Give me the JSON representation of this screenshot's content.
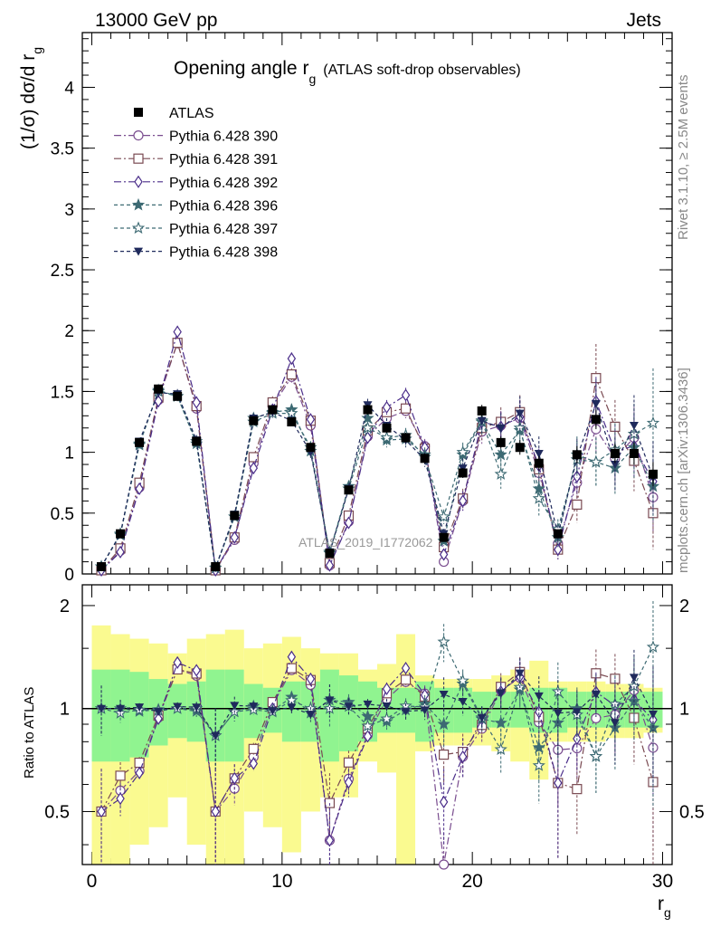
{
  "header": {
    "left": "13000 GeV pp",
    "right": "Jets"
  },
  "side_labels": {
    "rivet": "Rivet 3.1.10, ≥ 2.5M events",
    "mcplots": "mcplots.cern.ch [arXiv:1306.3436]"
  },
  "chart_data": {
    "type": "line",
    "title": "Opening angle r_g (ATLAS soft-drop observables)",
    "title_main": "Opening angle r",
    "title_sub": "g",
    "title_tail": "(ATLAS soft-drop observables)",
    "ylabel_main": "(1/σ) dσ/d r",
    "ylabel_sub": "g",
    "xlabel": "r",
    "xlabel_sub": "g",
    "watermark": "ATLAS_2019_I1772062",
    "ratio_ylabel": "Ratio to ATLAS",
    "xlim": [
      -0.5,
      30.5
    ],
    "ylim": [
      0,
      4.45
    ],
    "ratio_ylim": [
      0.35,
      2.3
    ],
    "x_ticks": [
      0,
      10,
      20,
      30
    ],
    "y_ticks": [
      0,
      0.5,
      1,
      1.5,
      2,
      2.5,
      3,
      3.5,
      4
    ],
    "ratio_y_ticks": [
      0.5,
      1,
      2
    ],
    "x": [
      0.5,
      1.5,
      2.5,
      3.5,
      4.5,
      5.5,
      6.5,
      7.5,
      8.5,
      9.5,
      10.5,
      11.5,
      12.5,
      13.5,
      14.5,
      15.5,
      16.5,
      17.5,
      18.5,
      19.5,
      20.5,
      21.5,
      22.5,
      23.5,
      24.5,
      25.5,
      26.5,
      27.5,
      28.5,
      29.5
    ],
    "data": {
      "name": "ATLAS",
      "values": [
        0.06,
        0.33,
        1.08,
        1.52,
        1.46,
        1.09,
        0.06,
        0.48,
        1.26,
        1.35,
        1.25,
        1.04,
        0.17,
        0.69,
        1.35,
        1.2,
        1.12,
        0.95,
        0.3,
        0.83,
        1.34,
        1.08,
        1.04,
        0.91,
        0.33,
        0.98,
        1.27,
        0.99,
        0.99,
        0.82
      ],
      "stat_err": [
        0.01,
        0.02,
        0.03,
        0.03,
        0.03,
        0.03,
        0.01,
        0.02,
        0.03,
        0.03,
        0.03,
        0.03,
        0.02,
        0.03,
        0.04,
        0.04,
        0.04,
        0.04,
        0.02,
        0.04,
        0.05,
        0.05,
        0.06,
        0.06,
        0.03,
        0.07,
        0.08,
        0.08,
        0.09,
        0.1
      ],
      "band_inner": [
        0.3,
        0.3,
        0.28,
        0.22,
        0.18,
        0.2,
        0.3,
        0.3,
        0.18,
        0.15,
        0.2,
        0.2,
        0.3,
        0.25,
        0.2,
        0.15,
        0.15,
        0.2,
        0.15,
        0.15,
        0.12,
        0.12,
        0.12,
        0.15,
        0.15,
        0.12,
        0.12,
        0.12,
        0.12,
        0.12
      ],
      "band_outer": [
        0.75,
        0.65,
        0.6,
        0.55,
        0.45,
        0.6,
        0.65,
        0.7,
        0.5,
        0.55,
        0.62,
        0.5,
        0.45,
        0.45,
        0.3,
        0.35,
        0.65,
        0.25,
        0.22,
        0.22,
        0.22,
        0.25,
        0.3,
        0.38,
        0.2,
        0.2,
        0.2,
        0.18,
        0.18,
        0.15
      ]
    },
    "series": [
      {
        "name": "Pythia 6.428 390",
        "color": "#7a4d8f",
        "marker": "circle-open",
        "dash": "8,3,2,3",
        "values": [
          0.03,
          0.19,
          0.71,
          1.43,
          1.9,
          1.36,
          0.03,
          0.28,
          0.91,
          1.38,
          1.62,
          1.22,
          0.07,
          0.43,
          1.13,
          1.28,
          1.34,
          1.05,
          0.1,
          0.6,
          1.17,
          1.22,
          1.28,
          0.83,
          0.25,
          0.75,
          1.19,
          0.95,
          1.12,
          0.63
        ],
        "errors": [
          0.01,
          0.02,
          0.03,
          0.04,
          0.05,
          0.05,
          0.01,
          0.03,
          0.04,
          0.05,
          0.05,
          0.05,
          0.02,
          0.04,
          0.05,
          0.06,
          0.06,
          0.06,
          0.03,
          0.08,
          0.1,
          0.12,
          0.14,
          0.14,
          0.08,
          0.15,
          0.2,
          0.22,
          0.25,
          0.3
        ]
      },
      {
        "name": "Pythia 6.428 391",
        "color": "#7a4a52",
        "marker": "square-open",
        "dash": "8,3,2,3",
        "values": [
          0.03,
          0.21,
          0.75,
          1.45,
          1.9,
          1.38,
          0.03,
          0.3,
          0.96,
          1.41,
          1.64,
          1.26,
          0.09,
          0.48,
          1.18,
          1.33,
          1.36,
          1.03,
          0.22,
          0.62,
          1.2,
          1.25,
          1.33,
          0.86,
          0.2,
          0.57,
          1.61,
          1.21,
          0.93,
          0.5
        ],
        "errors": [
          0.01,
          0.02,
          0.03,
          0.04,
          0.05,
          0.05,
          0.01,
          0.03,
          0.04,
          0.05,
          0.05,
          0.05,
          0.02,
          0.04,
          0.05,
          0.06,
          0.06,
          0.06,
          0.04,
          0.08,
          0.1,
          0.12,
          0.14,
          0.14,
          0.08,
          0.15,
          0.28,
          0.22,
          0.25,
          0.3
        ]
      },
      {
        "name": "Pythia 6.428 392",
        "color": "#4b2e8a",
        "marker": "diamond-open",
        "dash": "8,3,2,3",
        "values": [
          0.03,
          0.18,
          0.7,
          1.42,
          1.99,
          1.41,
          0.03,
          0.3,
          0.87,
          1.35,
          1.77,
          1.27,
          0.07,
          0.42,
          1.12,
          1.37,
          1.47,
          1.04,
          0.16,
          0.6,
          1.25,
          1.21,
          1.29,
          0.89,
          0.2,
          0.8,
          1.42,
          1.01,
          1.05,
          0.76
        ],
        "errors": [
          0.01,
          0.02,
          0.03,
          0.04,
          0.05,
          0.05,
          0.01,
          0.03,
          0.04,
          0.05,
          0.05,
          0.05,
          0.02,
          0.04,
          0.05,
          0.06,
          0.06,
          0.06,
          0.04,
          0.08,
          0.1,
          0.12,
          0.14,
          0.14,
          0.08,
          0.15,
          0.2,
          0.22,
          0.25,
          0.3
        ]
      },
      {
        "name": "Pythia 6.428 396",
        "color": "#3d6a73",
        "marker": "star-filled",
        "dash": "4,3",
        "values": [
          0.06,
          0.33,
          1.06,
          1.51,
          1.46,
          1.07,
          0.05,
          0.47,
          1.28,
          1.33,
          1.35,
          1.01,
          0.18,
          0.72,
          1.28,
          1.1,
          1.11,
          0.98,
          0.27,
          0.98,
          1.25,
          0.98,
          1.18,
          0.7,
          0.3,
          0.98,
          0.92,
          0.87,
          1.04,
          0.72
        ],
        "errors": [
          0.01,
          0.02,
          0.03,
          0.04,
          0.04,
          0.04,
          0.01,
          0.03,
          0.04,
          0.04,
          0.05,
          0.05,
          0.02,
          0.04,
          0.05,
          0.06,
          0.06,
          0.06,
          0.04,
          0.08,
          0.1,
          0.12,
          0.14,
          0.14,
          0.08,
          0.15,
          0.2,
          0.22,
          0.25,
          0.3
        ]
      },
      {
        "name": "Pythia 6.428 397",
        "color": "#3d6a73",
        "marker": "star-open",
        "dash": "4,3",
        "values": [
          0.06,
          0.32,
          1.07,
          1.5,
          1.46,
          1.09,
          0.05,
          0.47,
          1.25,
          1.32,
          1.32,
          1.04,
          0.17,
          0.7,
          1.2,
          1.12,
          1.14,
          0.96,
          0.47,
          1.0,
          1.26,
          0.82,
          1.2,
          0.62,
          0.37,
          0.94,
          0.92,
          1.02,
          1.15,
          1.24
        ],
        "errors": [
          0.01,
          0.02,
          0.03,
          0.04,
          0.04,
          0.04,
          0.01,
          0.03,
          0.04,
          0.04,
          0.05,
          0.05,
          0.02,
          0.04,
          0.05,
          0.06,
          0.06,
          0.06,
          0.06,
          0.08,
          0.1,
          0.12,
          0.14,
          0.14,
          0.08,
          0.15,
          0.2,
          0.22,
          0.25,
          0.45
        ]
      },
      {
        "name": "Pythia 6.428 398",
        "color": "#1f2a5c",
        "marker": "triangle-down-filled",
        "dash": "4,3",
        "values": [
          0.06,
          0.33,
          1.09,
          1.49,
          1.48,
          1.1,
          0.05,
          0.49,
          1.28,
          1.33,
          1.26,
          1.0,
          0.18,
          0.7,
          1.39,
          1.22,
          1.1,
          0.94,
          0.33,
          0.87,
          1.26,
          1.2,
          1.32,
          0.99,
          0.32,
          0.96,
          1.4,
          0.9,
          1.22,
          0.79
        ],
        "errors": [
          0.01,
          0.02,
          0.03,
          0.04,
          0.04,
          0.04,
          0.01,
          0.03,
          0.04,
          0.04,
          0.05,
          0.05,
          0.02,
          0.04,
          0.05,
          0.06,
          0.06,
          0.06,
          0.04,
          0.08,
          0.1,
          0.12,
          0.14,
          0.14,
          0.08,
          0.15,
          0.2,
          0.22,
          0.25,
          0.3
        ]
      }
    ],
    "colors": {
      "band_inner": "#90f490",
      "band_outer": "#fafa90",
      "data": "#000000"
    }
  }
}
